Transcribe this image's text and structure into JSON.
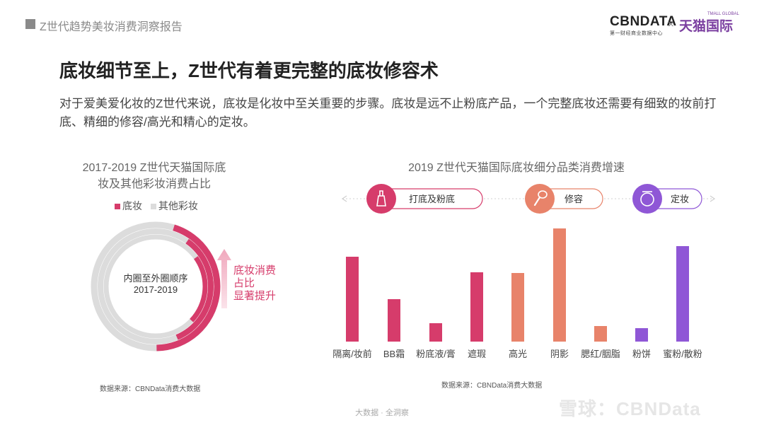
{
  "header": {
    "report_title": "Z世代趋势美妆消费洞察报告",
    "logo_cbn": "CBNDATA",
    "logo_cbn_sub": "第一财经商业数据中心",
    "logo_x": "×",
    "logo_tmall": "天猫国际",
    "logo_tmall_sub": "TMALL GLOBAL"
  },
  "main": {
    "title": "底妆细节至上，Z世代有着更完整的底妆修容术",
    "description": "对于爱美爱化妆的Z世代来说，底妆是化妆中至关重要的步骤。底妆是远不止粉底产品，一个完整底妆还需要有细致的妆前打底、精细的修容/高光和精心的定妆。"
  },
  "colors": {
    "base_makeup": "#d63c6b",
    "other_makeup": "#dcdcdc",
    "peach": "#e8836a",
    "purple": "#8f57d6"
  },
  "left_chart": {
    "title_line1": "2017-2019 Z世代天猫国际底",
    "title_line2": "妆及其他彩妆消费占比",
    "legend": [
      "底妆",
      "其他彩妆"
    ],
    "center_line1": "内圈至外圈顺序",
    "center_line2": "2017-2019",
    "annotation": [
      "底妆消费",
      "占比",
      "显著提升"
    ],
    "source": "数据来源：CBNData消费大数据",
    "chart_data": {
      "type": "pie",
      "title": "2017-2019 Z世代天猫国际底妆及其他彩妆消费占比",
      "series": [
        {
          "name": "2017",
          "base_share": 0.22
        },
        {
          "name": "2018",
          "base_share": 0.34
        },
        {
          "name": "2019",
          "base_share": 0.45
        }
      ],
      "categories": [
        "底妆",
        "其他彩妆"
      ]
    }
  },
  "right_chart": {
    "title": "2019 Z世代天猫国际底妆细分品类消费增速",
    "groups": [
      {
        "label": "打底及粉底",
        "icon": "foundation-bottle-icon"
      },
      {
        "label": "修容",
        "icon": "contour-brush-icon"
      },
      {
        "label": "定妆",
        "icon": "powder-compact-icon"
      }
    ],
    "source": "数据来源：CBNData消费大数据",
    "chart_data": {
      "type": "bar",
      "title": "2019 Z世代天猫国际底妆细分品类消费增速",
      "categories": [
        "隔离/妆前",
        "BB霜",
        "粉底液/膏",
        "遮瑕",
        "高光",
        "阴影",
        "腮红/胭脂",
        "粉饼",
        "蜜粉/散粉"
      ],
      "values": [
        120,
        60,
        26,
        98,
        97,
        160,
        22,
        19,
        135
      ],
      "groups": [
        "打底及粉底",
        "打底及粉底",
        "打底及粉底",
        "打底及粉底",
        "修容",
        "修容",
        "修容",
        "定妆",
        "定妆"
      ],
      "ylim": [
        0,
        165
      ],
      "xlabel": "",
      "ylabel": ""
    }
  },
  "footer": {
    "text": "大数据 · 全洞察",
    "watermark": "雪球：CBNData"
  }
}
